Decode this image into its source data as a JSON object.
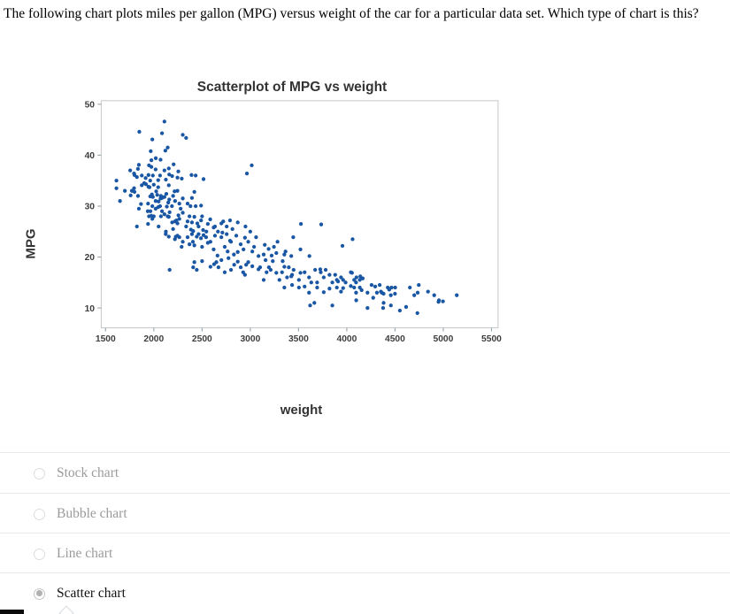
{
  "question": {
    "text": "The following chart plots miles per gallon (MPG) versus weight of the car for a particular data set. Which type of chart is this?"
  },
  "chart": {
    "title": "Scatterplot of MPG vs weight",
    "x_axis_title": "weight",
    "y_axis_title": "MPG"
  },
  "chart_data": {
    "type": "scatter",
    "title": "Scatterplot of MPG vs weight",
    "xlabel": "weight",
    "ylabel": "MPG",
    "xlim": [
      1455,
      5568
    ],
    "ylim": [
      6.1,
      50.7
    ],
    "x_ticks": [
      1500,
      2000,
      2500,
      3000,
      3500,
      4000,
      4500,
      5000,
      5500
    ],
    "y_ticks": [
      10,
      20,
      30,
      40,
      50
    ],
    "grid": false,
    "legend": "none",
    "point_color": "#1956a4",
    "frame_color": "#c6c6c6",
    "tick_color": "#9aa8b2",
    "tick_label_color": "#3d3d3d",
    "points": [
      [
        2110,
        46.6
      ],
      [
        1850,
        44.6
      ],
      [
        2085,
        44.3
      ],
      [
        2335,
        43.4
      ],
      [
        1985,
        43.1
      ],
      [
        2144,
        41.5
      ],
      [
        1968,
        40.8
      ],
      [
        2120,
        40.9
      ],
      [
        2020,
        39.4
      ],
      [
        2070,
        39.1
      ],
      [
        1975,
        39.0
      ],
      [
        2300,
        44.0
      ],
      [
        1613,
        35.0
      ],
      [
        1755,
        37.0
      ],
      [
        1795,
        36.4
      ],
      [
        1800,
        36.1
      ],
      [
        1825,
        35.7
      ],
      [
        1835,
        37.3
      ],
      [
        1845,
        38.1
      ],
      [
        1875,
        36.0
      ],
      [
        1915,
        35.5
      ],
      [
        1945,
        36.1
      ],
      [
        1950,
        38.0
      ],
      [
        1963,
        35.0
      ],
      [
        1975,
        37.7
      ],
      [
        1990,
        36.0
      ],
      [
        2019,
        37.2
      ],
      [
        2045,
        35.1
      ],
      [
        2065,
        36.0
      ],
      [
        2110,
        37.0
      ],
      [
        2125,
        35.2
      ],
      [
        2155,
        37.4
      ],
      [
        2160,
        36.2
      ],
      [
        2190,
        35.9
      ],
      [
        2205,
        38.2
      ],
      [
        2245,
        35.6
      ],
      [
        2254,
        36.8
      ],
      [
        2290,
        35.4
      ],
      [
        2391,
        36.1
      ],
      [
        2434,
        36.0
      ],
      [
        2515,
        35.3
      ],
      [
        3015,
        38.0
      ],
      [
        2965,
        36.4
      ],
      [
        1613,
        33.5
      ],
      [
        1650,
        31.0
      ],
      [
        1700,
        33.0
      ],
      [
        1760,
        32.1
      ],
      [
        1773,
        33.0
      ],
      [
        1795,
        33.5
      ],
      [
        1800,
        32.8
      ],
      [
        1836,
        32.0
      ],
      [
        1867,
        30.4
      ],
      [
        1875,
        34.1
      ],
      [
        1900,
        34.5
      ],
      [
        1918,
        34.3
      ],
      [
        1940,
        30.5
      ],
      [
        1945,
        33.8
      ],
      [
        1955,
        33.7
      ],
      [
        1963,
        31.9
      ],
      [
        1980,
        32.3
      ],
      [
        1985,
        30.0
      ],
      [
        1990,
        31.8
      ],
      [
        2000,
        34.2
      ],
      [
        2019,
        31.0
      ],
      [
        2025,
        32.9
      ],
      [
        2035,
        32.2
      ],
      [
        2045,
        33.7
      ],
      [
        2050,
        30.9
      ],
      [
        2065,
        30.0
      ],
      [
        2070,
        31.5
      ],
      [
        2074,
        32.0
      ],
      [
        2085,
        31.6
      ],
      [
        2110,
        31.8
      ],
      [
        2130,
        32.4
      ],
      [
        2150,
        30.7
      ],
      [
        2155,
        34.1
      ],
      [
        2160,
        31.3
      ],
      [
        2188,
        30.0
      ],
      [
        2200,
        32.0
      ],
      [
        2215,
        32.9
      ],
      [
        2220,
        31.0
      ],
      [
        2245,
        33.0
      ],
      [
        2265,
        30.5
      ],
      [
        2300,
        31.5
      ],
      [
        2350,
        30.5
      ],
      [
        2380,
        30.0
      ],
      [
        2395,
        31.6
      ],
      [
        2420,
        32.8
      ],
      [
        2434,
        30.0
      ],
      [
        2490,
        30.1
      ],
      [
        1825,
        26.0
      ],
      [
        1845,
        29.5
      ],
      [
        1937,
        29.0
      ],
      [
        1940,
        26.5
      ],
      [
        1950,
        28.0
      ],
      [
        1965,
        29.0
      ],
      [
        1975,
        28.1
      ],
      [
        1985,
        27.5
      ],
      [
        2000,
        28.0
      ],
      [
        2019,
        29.5
      ],
      [
        2045,
        29.8
      ],
      [
        2050,
        26.0
      ],
      [
        2074,
        28.0
      ],
      [
        2085,
        29.0
      ],
      [
        2110,
        28.4
      ],
      [
        2125,
        25.0
      ],
      [
        2135,
        29.9
      ],
      [
        2144,
        28.0
      ],
      [
        2155,
        27.9
      ],
      [
        2164,
        28.8
      ],
      [
        2190,
        26.8
      ],
      [
        2200,
        25.5
      ],
      [
        2220,
        27.0
      ],
      [
        2234,
        27.2
      ],
      [
        2245,
        26.6
      ],
      [
        2255,
        28.2
      ],
      [
        2265,
        27.5
      ],
      [
        2278,
        29.5
      ],
      [
        2300,
        28.7
      ],
      [
        2335,
        26.0
      ],
      [
        2350,
        27.0
      ],
      [
        2370,
        28.0
      ],
      [
        2385,
        25.4
      ],
      [
        2395,
        26.8
      ],
      [
        2408,
        25.1
      ],
      [
        2420,
        27.9
      ],
      [
        2451,
        26.6
      ],
      [
        2464,
        26.0
      ],
      [
        2490,
        27.2
      ],
      [
        2500,
        28.0
      ],
      [
        2511,
        25.3
      ],
      [
        2545,
        25.0
      ],
      [
        2560,
        26.5
      ],
      [
        2585,
        27.4
      ],
      [
        2620,
        25.8
      ],
      [
        2634,
        26.0
      ],
      [
        2665,
        25.0
      ],
      [
        2700,
        26.6
      ],
      [
        2720,
        27.0
      ],
      [
        2755,
        26.0
      ],
      [
        2790,
        27.2
      ],
      [
        2815,
        25.5
      ],
      [
        2870,
        26.8
      ],
      [
        2950,
        26.0
      ],
      [
        3000,
        25.0
      ],
      [
        3525,
        26.5
      ],
      [
        3735,
        26.4
      ],
      [
        2124,
        24.5
      ],
      [
        2155,
        24.0
      ],
      [
        2219,
        23.5
      ],
      [
        2228,
        24.0
      ],
      [
        2245,
        24.2
      ],
      [
        2265,
        23.9
      ],
      [
        2288,
        22.0
      ],
      [
        2300,
        23.0
      ],
      [
        2350,
        23.9
      ],
      [
        2370,
        22.5
      ],
      [
        2395,
        24.5
      ],
      [
        2405,
        23.0
      ],
      [
        2420,
        22.3
      ],
      [
        2445,
        24.0
      ],
      [
        2464,
        24.5
      ],
      [
        2489,
        23.7
      ],
      [
        2500,
        22.0
      ],
      [
        2515,
        24.3
      ],
      [
        2542,
        23.9
      ],
      [
        2560,
        22.8
      ],
      [
        2587,
        23.0
      ],
      [
        2620,
        21.5
      ],
      [
        2634,
        24.2
      ],
      [
        2660,
        20.3
      ],
      [
        2700,
        23.9
      ],
      [
        2711,
        24.8
      ],
      [
        2735,
        22.0
      ],
      [
        2755,
        24.5
      ],
      [
        2765,
        21.1
      ],
      [
        2790,
        23.2
      ],
      [
        2800,
        23.0
      ],
      [
        2830,
        20.5
      ],
      [
        2855,
        24.2
      ],
      [
        2870,
        21.0
      ],
      [
        2900,
        22.5
      ],
      [
        2930,
        21.5
      ],
      [
        2945,
        23.8
      ],
      [
        2979,
        23.0
      ],
      [
        3021,
        21.1
      ],
      [
        3039,
        22.0
      ],
      [
        3060,
        23.9
      ],
      [
        3085,
        20.2
      ],
      [
        3139,
        20.5
      ],
      [
        3150,
        22.4
      ],
      [
        3190,
        21.6
      ],
      [
        3221,
        20.3
      ],
      [
        3245,
        22.0
      ],
      [
        3270,
        20.8
      ],
      [
        3282,
        23.0
      ],
      [
        3353,
        20.5
      ],
      [
        3365,
        21.1
      ],
      [
        3425,
        20.2
      ],
      [
        3445,
        23.9
      ],
      [
        3520,
        21.5
      ],
      [
        3613,
        20.2
      ],
      [
        3955,
        22.2
      ],
      [
        4060,
        23.5
      ],
      [
        2408,
        18.0
      ],
      [
        2420,
        19.0
      ],
      [
        2445,
        17.5
      ],
      [
        2500,
        19.2
      ],
      [
        2587,
        18.1
      ],
      [
        2625,
        18.6
      ],
      [
        2648,
        19.0
      ],
      [
        2670,
        18.0
      ],
      [
        2700,
        19.4
      ],
      [
        2735,
        17.0
      ],
      [
        2774,
        19.8
      ],
      [
        2800,
        17.5
      ],
      [
        2833,
        18.5
      ],
      [
        2870,
        19.1
      ],
      [
        2901,
        18.0
      ],
      [
        2926,
        17.0
      ],
      [
        2945,
        16.5
      ],
      [
        2957,
        18.5
      ],
      [
        2979,
        19.0
      ],
      [
        3021,
        18.2
      ],
      [
        3085,
        17.6
      ],
      [
        3102,
        18.0
      ],
      [
        3139,
        15.5
      ],
      [
        3158,
        19.4
      ],
      [
        3169,
        17.0
      ],
      [
        3193,
        18.0
      ],
      [
        3211,
        17.5
      ],
      [
        3233,
        19.2
      ],
      [
        3270,
        16.9
      ],
      [
        3302,
        15.5
      ],
      [
        3329,
        17.0
      ],
      [
        3336,
        19.2
      ],
      [
        3353,
        18.1
      ],
      [
        3381,
        16.0
      ],
      [
        3399,
        18.0
      ],
      [
        3425,
        16.2
      ],
      [
        3433,
        16.5
      ],
      [
        3449,
        17.5
      ],
      [
        3504,
        15.5
      ],
      [
        3520,
        16.9
      ],
      [
        3563,
        17.0
      ],
      [
        3609,
        16.0
      ],
      [
        3632,
        15.0
      ],
      [
        3672,
        17.5
      ],
      [
        3693,
        15.0
      ],
      [
        3725,
        17.6
      ],
      [
        3730,
        17.0
      ],
      [
        3761,
        16.0
      ],
      [
        3781,
        17.5
      ],
      [
        3821,
        16.5
      ],
      [
        3850,
        15.0
      ],
      [
        3880,
        16.5
      ],
      [
        3897,
        15.5
      ],
      [
        3910,
        15.2
      ],
      [
        3940,
        16.0
      ],
      [
        3962,
        15.5
      ],
      [
        3988,
        15.0
      ],
      [
        4042,
        17.0
      ],
      [
        4054,
        16.9
      ],
      [
        4077,
        15.5
      ],
      [
        4096,
        15.0
      ],
      [
        4100,
        16.0
      ],
      [
        4135,
        15.5
      ],
      [
        4140,
        16.2
      ],
      [
        4165,
        15.8
      ],
      [
        2164,
        17.5
      ],
      [
        3353,
        14.0
      ],
      [
        3433,
        14.5
      ],
      [
        3504,
        14.0
      ],
      [
        3563,
        14.2
      ],
      [
        3609,
        13.0
      ],
      [
        3693,
        14.0
      ],
      [
        3761,
        13.1
      ],
      [
        3821,
        13.8
      ],
      [
        3897,
        14.0
      ],
      [
        3940,
        13.2
      ],
      [
        3962,
        13.9
      ],
      [
        4042,
        14.3
      ],
      [
        4077,
        14.0
      ],
      [
        4096,
        13.0
      ],
      [
        4135,
        14.0
      ],
      [
        4154,
        13.5
      ],
      [
        4215,
        13.0
      ],
      [
        4257,
        14.5
      ],
      [
        4295,
        14.2
      ],
      [
        4312,
        13.0
      ],
      [
        4341,
        14.5
      ],
      [
        4354,
        13.2
      ],
      [
        4363,
        13.0
      ],
      [
        4382,
        12.8
      ],
      [
        4425,
        14.0
      ],
      [
        4440,
        13.6
      ],
      [
        4456,
        12.5
      ],
      [
        4464,
        14.0
      ],
      [
        4499,
        12.8
      ],
      [
        4502,
        14.0
      ],
      [
        4654,
        14.0
      ],
      [
        4699,
        12.5
      ],
      [
        4735,
        13.0
      ],
      [
        4746,
        14.5
      ],
      [
        4906,
        12.5
      ],
      [
        4842,
        13.2
      ],
      [
        4951,
        11.2
      ],
      [
        4955,
        11.5
      ],
      [
        4997,
        11.3
      ],
      [
        5140,
        12.5
      ],
      [
        3664,
        11.0
      ],
      [
        3850,
        10.5
      ],
      [
        4098,
        11.5
      ],
      [
        4215,
        10.0
      ],
      [
        4274,
        12.0
      ],
      [
        4376,
        10.0
      ],
      [
        4382,
        11.0
      ],
      [
        4550,
        9.5
      ],
      [
        4615,
        10.2
      ],
      [
        4732,
        9.0
      ],
      [
        3620,
        10.5
      ],
      [
        4457,
        10.5
      ]
    ]
  },
  "options": {
    "items": [
      {
        "label": "Stock chart",
        "selected": false
      },
      {
        "label": "Bubble chart",
        "selected": false
      },
      {
        "label": "Line chart",
        "selected": false
      },
      {
        "label": "Scatter chart",
        "selected": true
      }
    ]
  }
}
